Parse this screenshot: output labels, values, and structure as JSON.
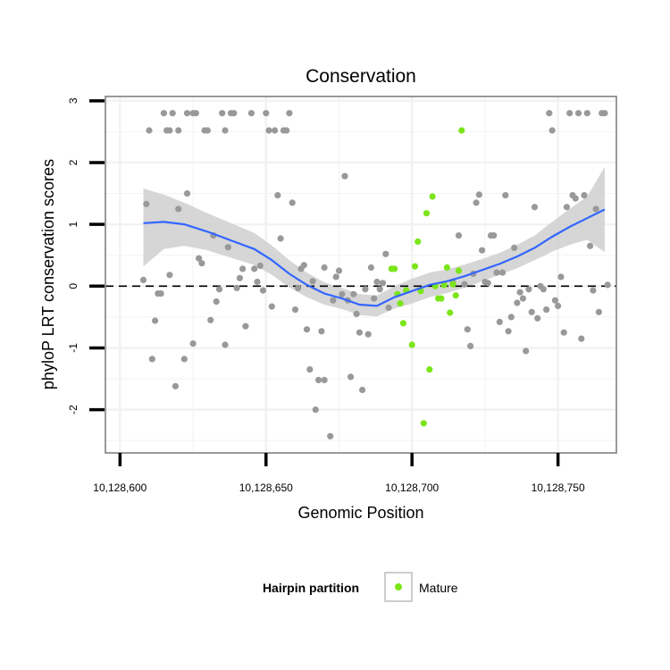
{
  "chart_data": {
    "type": "scatter",
    "title": "Conservation",
    "xlabel": "Genomic Position",
    "ylabel": "phyloP LRT conservation scores",
    "xlim": [
      10128595,
      10128770
    ],
    "ylim": [
      -2.7,
      3.07
    ],
    "x_ticks": [
      10128600,
      10128650,
      10128700,
      10128750
    ],
    "x_tick_labels": [
      "10,128,600",
      "10,128,650",
      "10,128,700",
      "10,128,750"
    ],
    "y_ticks": [
      -2,
      -1,
      0,
      1,
      2,
      3
    ],
    "y_tick_labels": [
      "-2",
      "-1",
      "0",
      "1",
      "2",
      "3"
    ],
    "reference_line": {
      "y": 0,
      "style": "dashed"
    },
    "colors": {
      "other": "#999999",
      "mature": "#7be519",
      "smooth": "#3366ff",
      "band": "#cccccc",
      "panel_border": "#808080",
      "grid": "#f2f2f2"
    },
    "legend": {
      "title": "Hairpin partition",
      "entries": [
        {
          "label": "Mature",
          "color": "#7be519"
        }
      ],
      "position": "bottom"
    },
    "series": [
      {
        "name": "Other",
        "color": "#999999",
        "points": [
          [
            10128608,
            0.1
          ],
          [
            10128609,
            1.33
          ],
          [
            10128610,
            2.52
          ],
          [
            10128611,
            -1.18
          ],
          [
            10128612,
            -0.56
          ],
          [
            10128613,
            -0.12
          ],
          [
            10128614,
            -0.12
          ],
          [
            10128615,
            2.8
          ],
          [
            10128616,
            2.52
          ],
          [
            10128617,
            0.18
          ],
          [
            10128617,
            2.52
          ],
          [
            10128618,
            2.8
          ],
          [
            10128619,
            -1.62
          ],
          [
            10128620,
            1.25
          ],
          [
            10128620,
            2.52
          ],
          [
            10128622,
            -1.18
          ],
          [
            10128623,
            1.5
          ],
          [
            10128623,
            2.8
          ],
          [
            10128625,
            -0.93
          ],
          [
            10128625,
            2.8
          ],
          [
            10128626,
            2.8
          ],
          [
            10128627,
            0.45
          ],
          [
            10128628,
            0.37
          ],
          [
            10128629,
            2.52
          ],
          [
            10128630,
            2.52
          ],
          [
            10128631,
            -0.55
          ],
          [
            10128632,
            0.82
          ],
          [
            10128633,
            -0.25
          ],
          [
            10128634,
            -0.05
          ],
          [
            10128635,
            2.8
          ],
          [
            10128636,
            2.52
          ],
          [
            10128636,
            -0.95
          ],
          [
            10128637,
            0.63
          ],
          [
            10128638,
            2.8
          ],
          [
            10128639,
            2.8
          ],
          [
            10128640,
            -0.03
          ],
          [
            10128641,
            0.13
          ],
          [
            10128642,
            0.28
          ],
          [
            10128643,
            -0.65
          ],
          [
            10128645,
            2.8
          ],
          [
            10128646,
            0.28
          ],
          [
            10128647,
            0.07
          ],
          [
            10128648,
            0.33
          ],
          [
            10128649,
            -0.07
          ],
          [
            10128650,
            2.8
          ],
          [
            10128651,
            2.52
          ],
          [
            10128652,
            -0.33
          ],
          [
            10128653,
            2.52
          ],
          [
            10128654,
            1.47
          ],
          [
            10128655,
            0.77
          ],
          [
            10128656,
            2.52
          ],
          [
            10128657,
            2.52
          ],
          [
            10128658,
            2.8
          ],
          [
            10128659,
            1.35
          ],
          [
            10128660,
            -0.38
          ],
          [
            10128661,
            -0.03
          ],
          [
            10128662,
            0.28
          ],
          [
            10128663,
            0.34
          ],
          [
            10128664,
            -0.7
          ],
          [
            10128665,
            -1.35
          ],
          [
            10128666,
            0.08
          ],
          [
            10128667,
            -2.0
          ],
          [
            10128668,
            -1.52
          ],
          [
            10128669,
            -0.73
          ],
          [
            10128670,
            0.3
          ],
          [
            10128670,
            -1.52
          ],
          [
            10128672,
            -2.43
          ],
          [
            10128673,
            -0.23
          ],
          [
            10128674,
            0.15
          ],
          [
            10128675,
            0.25
          ],
          [
            10128676,
            -0.13
          ],
          [
            10128677,
            1.78
          ],
          [
            10128678,
            -0.23
          ],
          [
            10128679,
            -1.47
          ],
          [
            10128680,
            -0.13
          ],
          [
            10128681,
            -0.45
          ],
          [
            10128682,
            -0.75
          ],
          [
            10128683,
            -1.68
          ],
          [
            10128684,
            -0.05
          ],
          [
            10128685,
            -0.78
          ],
          [
            10128686,
            0.3
          ],
          [
            10128687,
            -0.2
          ],
          [
            10128688,
            0.07
          ],
          [
            10128689,
            -0.05
          ],
          [
            10128690,
            0.05
          ],
          [
            10128691,
            0.52
          ],
          [
            10128692,
            -0.35
          ],
          [
            10128714,
            0.07
          ],
          [
            10128716,
            0.82
          ],
          [
            10128718,
            0.03
          ],
          [
            10128719,
            -0.7
          ],
          [
            10128720,
            -0.97
          ],
          [
            10128721,
            0.2
          ],
          [
            10128722,
            1.35
          ],
          [
            10128723,
            1.48
          ],
          [
            10128724,
            0.58
          ],
          [
            10128725,
            0.07
          ],
          [
            10128726,
            0.05
          ],
          [
            10128727,
            0.82
          ],
          [
            10128728,
            0.82
          ],
          [
            10128729,
            0.22
          ],
          [
            10128730,
            -0.58
          ],
          [
            10128731,
            0.22
          ],
          [
            10128732,
            1.47
          ],
          [
            10128733,
            -0.73
          ],
          [
            10128734,
            -0.5
          ],
          [
            10128735,
            0.62
          ],
          [
            10128736,
            -0.27
          ],
          [
            10128737,
            -0.1
          ],
          [
            10128738,
            -0.2
          ],
          [
            10128739,
            -1.05
          ],
          [
            10128740,
            -0.05
          ],
          [
            10128741,
            -0.42
          ],
          [
            10128742,
            1.28
          ],
          [
            10128743,
            -0.52
          ],
          [
            10128744,
            0.0
          ],
          [
            10128745,
            -0.05
          ],
          [
            10128746,
            -0.38
          ],
          [
            10128747,
            2.8
          ],
          [
            10128748,
            2.52
          ],
          [
            10128749,
            -0.23
          ],
          [
            10128750,
            -0.32
          ],
          [
            10128751,
            0.15
          ],
          [
            10128752,
            -0.75
          ],
          [
            10128753,
            1.28
          ],
          [
            10128754,
            2.8
          ],
          [
            10128755,
            1.47
          ],
          [
            10128756,
            1.42
          ],
          [
            10128757,
            2.8
          ],
          [
            10128758,
            -0.85
          ],
          [
            10128759,
            1.47
          ],
          [
            10128760,
            2.8
          ],
          [
            10128761,
            0.65
          ],
          [
            10128762,
            -0.07
          ],
          [
            10128763,
            1.25
          ],
          [
            10128764,
            -0.42
          ],
          [
            10128765,
            2.8
          ],
          [
            10128766,
            2.8
          ],
          [
            10128767,
            0.02
          ]
        ]
      },
      {
        "name": "Mature",
        "color": "#7be519",
        "points": [
          [
            10128693,
            0.28
          ],
          [
            10128694,
            0.28
          ],
          [
            10128695,
            -0.13
          ],
          [
            10128696,
            -0.28
          ],
          [
            10128697,
            -0.6
          ],
          [
            10128698,
            -0.07
          ],
          [
            10128700,
            -0.95
          ],
          [
            10128701,
            0.32
          ],
          [
            10128702,
            0.72
          ],
          [
            10128703,
            -0.08
          ],
          [
            10128704,
            -2.22
          ],
          [
            10128705,
            1.18
          ],
          [
            10128706,
            -1.35
          ],
          [
            10128707,
            1.45
          ],
          [
            10128708,
            0.0
          ],
          [
            10128709,
            -0.2
          ],
          [
            10128710,
            -0.2
          ],
          [
            10128711,
            0.02
          ],
          [
            10128712,
            0.3
          ],
          [
            10128713,
            -0.43
          ],
          [
            10128714,
            0.03
          ],
          [
            10128715,
            -0.15
          ],
          [
            10128716,
            0.25
          ],
          [
            10128717,
            2.52
          ]
        ]
      }
    ],
    "smooth": {
      "method": "loess",
      "color": "#3366ff",
      "x": [
        10128608,
        10128615,
        10128622,
        10128630,
        10128638,
        10128646,
        10128652,
        10128658,
        10128664,
        10128670,
        10128676,
        10128682,
        10128688,
        10128694,
        10128700,
        10128706,
        10128712,
        10128718,
        10128724,
        10128730,
        10128736,
        10128742,
        10128748,
        10128754,
        10128760,
        10128766
      ],
      "y": [
        1.02,
        1.04,
        1.0,
        0.88,
        0.74,
        0.6,
        0.42,
        0.2,
        0.02,
        -0.12,
        -0.2,
        -0.3,
        -0.32,
        -0.18,
        -0.08,
        0.02,
        0.08,
        0.16,
        0.26,
        0.36,
        0.48,
        0.62,
        0.8,
        0.96,
        1.1,
        1.24
      ],
      "upper": [
        1.58,
        1.48,
        1.35,
        1.18,
        1.02,
        0.86,
        0.66,
        0.42,
        0.22,
        0.06,
        -0.03,
        -0.13,
        -0.15,
        0.0,
        0.12,
        0.22,
        0.27,
        0.35,
        0.44,
        0.54,
        0.67,
        0.82,
        1.04,
        1.25,
        1.45,
        1.93
      ],
      "lower": [
        0.32,
        0.6,
        0.65,
        0.58,
        0.46,
        0.34,
        0.18,
        -0.02,
        -0.18,
        -0.3,
        -0.37,
        -0.47,
        -0.49,
        -0.36,
        -0.28,
        -0.18,
        -0.11,
        -0.03,
        0.08,
        0.18,
        0.29,
        0.42,
        0.56,
        0.67,
        0.75,
        0.55
      ]
    }
  }
}
